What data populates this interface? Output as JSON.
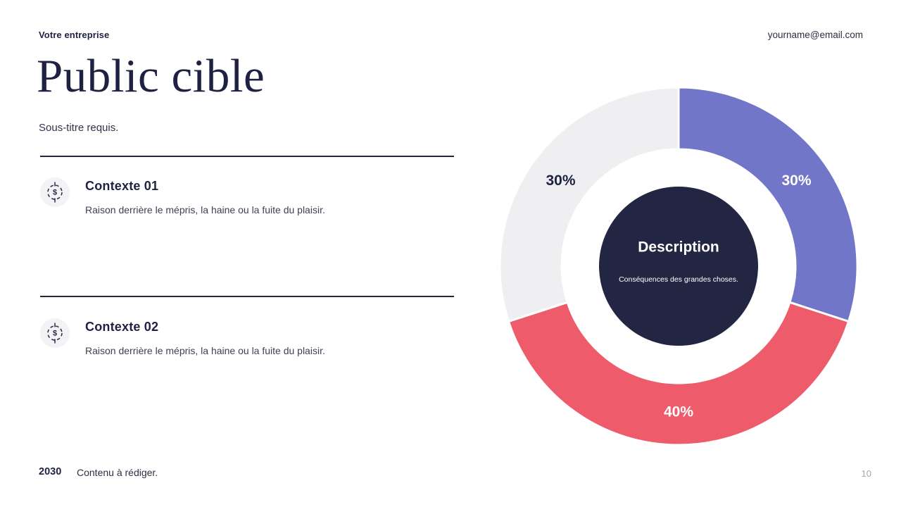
{
  "header": {
    "company_name": "Votre entreprise",
    "email": "yourname@email.com"
  },
  "main": {
    "title": "Public cible",
    "subtitle": "Sous-titre requis.",
    "sections": [
      {
        "heading": "Contexte 01",
        "description": "Raison derrière le mépris, la haine ou la fuite du plaisir."
      },
      {
        "heading": "Contexte 02",
        "description": "Raison derrière le mépris, la haine ou la fuite du plaisir."
      }
    ]
  },
  "chart_data": {
    "type": "pie",
    "subtype": "donut",
    "start_angle_deg": 0,
    "direction": "clockwise",
    "values": [
      30,
      40,
      30
    ],
    "labels": [
      "30%",
      "40%",
      "30%"
    ],
    "colors": [
      "#7276c8",
      "#ee5c6c",
      "#efeff2"
    ],
    "label_colors": [
      "#ffffff",
      "#ffffff",
      "#1e2142"
    ],
    "legend": "none",
    "center": {
      "title": "Description",
      "subtitle": "Conséquences des grandes choses.",
      "background": "#232642",
      "text_color": "#ffffff"
    }
  },
  "footer": {
    "year": "2030",
    "note": "Contenu à rédiger.",
    "page_number": "10"
  },
  "theme": {
    "text_dark": "#1e2142",
    "icon_background": "#f3f3f6",
    "divider_color": "#23263f",
    "page_number_color": "#a6a6ae"
  }
}
